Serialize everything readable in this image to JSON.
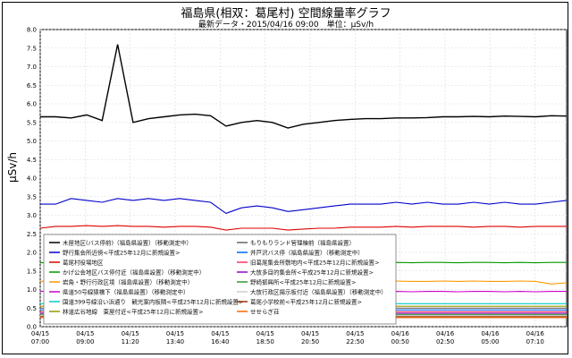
{
  "chart_data": {
    "type": "line",
    "title": "福島県(相双：葛尾村) 空間線量率グラフ",
    "subtitle": "最新データ・2015/04/16 09:00　単位：μSv/h",
    "ylabel": "μSv/h",
    "xlabel": "",
    "ylim": [
      0,
      8.0
    ],
    "yticks": [
      "0.0",
      "0.5",
      "1.0",
      "1.5",
      "2.0",
      "2.5",
      "3.0",
      "3.5",
      "4.0",
      "4.5",
      "5.0",
      "5.5",
      "6.0",
      "6.5",
      "7.0",
      "7.5",
      "8.0"
    ],
    "xticks": [
      {
        "date": "04/15",
        "time": "07:00"
      },
      {
        "date": "04/15",
        "time": "09:00"
      },
      {
        "date": "04/15",
        "time": "11:20"
      },
      {
        "date": "04/15",
        "time": "13:40"
      },
      {
        "date": "04/15",
        "time": "16:40"
      },
      {
        "date": "04/15",
        "time": "18:50"
      },
      {
        "date": "04/15",
        "time": "20:50"
      },
      {
        "date": "04/15",
        "time": "22:50"
      },
      {
        "date": "04/16",
        "time": "00:50"
      },
      {
        "date": "04/16",
        "time": "02:50"
      },
      {
        "date": "04/16",
        "time": "05:00"
      },
      {
        "date": "04/16",
        "time": "07:10"
      }
    ],
    "grid": true,
    "legend_placement": "bottom-left",
    "series": [
      {
        "name": "木屋地区(バス停前)（福島県設置）（移動測定中）",
        "color": "#000000",
        "values": [
          5.65,
          5.65,
          5.62,
          5.7,
          5.55,
          7.6,
          5.5,
          5.6,
          5.65,
          5.7,
          5.72,
          5.68,
          5.4,
          5.5,
          5.55,
          5.5,
          5.35,
          5.45,
          5.5,
          5.55,
          5.58,
          5.6,
          5.6,
          5.62,
          5.62,
          5.63,
          5.65,
          5.65,
          5.66,
          5.65,
          5.67,
          5.66,
          5.65,
          5.68,
          5.67
        ]
      },
      {
        "name": "野行集会所近傍<平成25年12月に新規設置>",
        "color": "#0000cc",
        "values": [
          3.3,
          3.3,
          3.45,
          3.4,
          3.35,
          3.45,
          3.4,
          3.45,
          3.4,
          3.45,
          3.4,
          3.35,
          3.05,
          3.2,
          3.25,
          3.2,
          3.1,
          3.15,
          3.2,
          3.25,
          3.3,
          3.3,
          3.3,
          3.35,
          3.3,
          3.35,
          3.3,
          3.3,
          3.35,
          3.3,
          3.35,
          3.3,
          3.3,
          3.35,
          3.4
        ]
      },
      {
        "name": "葛尾村役場地区",
        "color": "#dd0000",
        "values": [
          2.65,
          2.7,
          2.7,
          2.72,
          2.7,
          2.72,
          2.7,
          2.7,
          2.68,
          2.7,
          2.7,
          2.68,
          2.6,
          2.65,
          2.65,
          2.65,
          2.6,
          2.63,
          2.65,
          2.65,
          2.68,
          2.68,
          2.68,
          2.7,
          2.68,
          2.7,
          2.7,
          2.7,
          2.68,
          2.7,
          2.7,
          2.68,
          2.7,
          2.7,
          2.7
        ]
      },
      {
        "name": "かげ公会地区バス停付近（福島県設置）（移動測定中）",
        "color": "#009900",
        "values": [
          1.72,
          1.73,
          1.72,
          1.74,
          1.73,
          1.74,
          1.73,
          1.73,
          1.72,
          1.74,
          1.73,
          1.72,
          1.68,
          1.7,
          1.7,
          1.7,
          1.68,
          1.7,
          1.7,
          1.71,
          1.72,
          1.72,
          1.72,
          1.73,
          1.72,
          1.73,
          1.73,
          1.72,
          1.73,
          1.73,
          1.72,
          1.73,
          1.72,
          1.73,
          1.73
        ]
      },
      {
        "name": "岩角・野行行政区境（福島県設置）（移動測定中）",
        "color": "#ff9900",
        "values": [
          1.22,
          1.24,
          1.23,
          1.25,
          1.24,
          1.25,
          1.24,
          1.24,
          1.23,
          1.24,
          1.24,
          1.23,
          1.18,
          1.2,
          1.2,
          1.2,
          1.18,
          1.19,
          1.2,
          1.21,
          1.22,
          1.22,
          1.22,
          1.23,
          1.22,
          1.22,
          1.23,
          1.22,
          1.23,
          1.22,
          1.22,
          1.23,
          1.22,
          1.15,
          1.18
        ]
      },
      {
        "name": "県道50号線猿橋下（福島県設置）（移動測定中）",
        "color": "#cc00cc",
        "values": [
          0.95,
          0.96,
          0.95,
          0.96,
          0.96,
          0.97,
          0.96,
          0.96,
          0.95,
          0.96,
          0.96,
          0.95,
          0.92,
          0.93,
          0.93,
          0.93,
          0.92,
          0.93,
          0.93,
          0.94,
          0.94,
          0.94,
          0.94,
          0.95,
          0.94,
          0.95,
          0.95,
          0.94,
          0.95,
          0.95,
          0.94,
          0.95,
          0.94,
          0.95,
          0.95
        ]
      },
      {
        "name": "国道399号線沿い浜通り　観光案内板隣<平成25年12月に新規設置>",
        "color": "#00cccc",
        "values": [
          0.62,
          0.63,
          0.62,
          0.63,
          0.63,
          0.64,
          0.63,
          0.63,
          0.62,
          0.63,
          0.63,
          0.62,
          0.6,
          0.61,
          0.61,
          0.61,
          0.6,
          0.61,
          0.61,
          0.62,
          0.62,
          0.62,
          0.62,
          0.62,
          0.62,
          0.62,
          0.62,
          0.62,
          0.62,
          0.62,
          0.62,
          0.62,
          0.62,
          0.62,
          0.62
        ]
      },
      {
        "name": "林道広谷地線　東屋付近<平成25年12月に新規設置>",
        "color": "#999900",
        "values": [
          0.55,
          0.55,
          0.55,
          0.56,
          0.55,
          0.56,
          0.55,
          0.55,
          0.55,
          0.55,
          0.55,
          0.55,
          0.53,
          0.54,
          0.54,
          0.54,
          0.53,
          0.54,
          0.54,
          0.54,
          0.55,
          0.55,
          0.55,
          0.55,
          0.55,
          0.55,
          0.55,
          0.55,
          0.55,
          0.55,
          0.55,
          0.55,
          0.55,
          0.55,
          0.55
        ]
      },
      {
        "name": "もりもりランド管理棟前（福島県設置）",
        "color": "#666666",
        "values": [
          0.5,
          0.5,
          0.5,
          0.51,
          0.5,
          0.51,
          0.5,
          0.5,
          0.5,
          0.5,
          0.5,
          0.5,
          0.48,
          0.49,
          0.49,
          0.49,
          0.48,
          0.49,
          0.49,
          0.49,
          0.5,
          0.5,
          0.5,
          0.5,
          0.5,
          0.5,
          0.5,
          0.5,
          0.5,
          0.5,
          0.5,
          0.5,
          0.5,
          0.5,
          0.5
        ]
      },
      {
        "name": "井戸沢バス停（福島県設置）（移動測定中）",
        "color": "#0066ff",
        "values": [
          0.45,
          0.46,
          0.45,
          0.46,
          0.46,
          0.46,
          0.45,
          0.45,
          0.45,
          0.45,
          0.45,
          0.45,
          0.44,
          0.44,
          0.44,
          0.44,
          0.44,
          0.44,
          0.44,
          0.45,
          0.45,
          0.45,
          0.45,
          0.45,
          0.45,
          0.45,
          0.45,
          0.45,
          0.45,
          0.45,
          0.45,
          0.45,
          0.45,
          0.45,
          0.45
        ]
      },
      {
        "name": "旧葛尾集会所敷地内<平成25年12月に新規設置>",
        "color": "#ff3366",
        "values": [
          0.4,
          0.41,
          0.4,
          0.41,
          0.4,
          0.41,
          0.4,
          0.4,
          0.4,
          0.4,
          0.4,
          0.4,
          0.39,
          0.39,
          0.39,
          0.39,
          0.39,
          0.39,
          0.39,
          0.4,
          0.4,
          0.4,
          0.4,
          0.4,
          0.4,
          0.4,
          0.4,
          0.4,
          0.4,
          0.4,
          0.4,
          0.4,
          0.4,
          0.4,
          0.4
        ]
      },
      {
        "name": "大放多目的集会所<平成25年12月に新規設置>",
        "color": "#9900cc",
        "values": [
          0.36,
          0.37,
          0.36,
          0.37,
          0.36,
          0.37,
          0.36,
          0.36,
          0.36,
          0.36,
          0.36,
          0.36,
          0.35,
          0.35,
          0.35,
          0.35,
          0.35,
          0.35,
          0.35,
          0.36,
          0.36,
          0.36,
          0.36,
          0.36,
          0.36,
          0.36,
          0.36,
          0.36,
          0.36,
          0.36,
          0.36,
          0.36,
          0.36,
          0.36,
          0.36
        ]
      },
      {
        "name": "野崎振興所<平成25年12月に新規設置>",
        "color": "#339933",
        "values": [
          0.33,
          0.34,
          0.33,
          0.34,
          0.33,
          0.34,
          0.33,
          0.33,
          0.33,
          0.33,
          0.33,
          0.33,
          0.32,
          0.32,
          0.32,
          0.32,
          0.32,
          0.32,
          0.32,
          0.33,
          0.33,
          0.33,
          0.33,
          0.33,
          0.33,
          0.33,
          0.33,
          0.33,
          0.33,
          0.33,
          0.33,
          0.33,
          0.33,
          0.33,
          0.33
        ]
      },
      {
        "name": "大放行政区揚示板付近（福島県設置）（移動測定中）",
        "color": "#cccccc",
        "values": [
          0.3,
          0.31,
          0.3,
          0.31,
          0.3,
          0.31,
          0.3,
          0.3,
          0.3,
          0.3,
          0.3,
          0.3,
          0.29,
          0.29,
          0.29,
          0.29,
          0.29,
          0.29,
          0.29,
          0.3,
          0.3,
          0.3,
          0.3,
          0.3,
          0.3,
          0.3,
          0.3,
          0.3,
          0.3,
          0.3,
          0.3,
          0.3,
          0.3,
          0.3,
          0.3
        ]
      },
      {
        "name": "葛尾小学校前<平成25年12月に新規設置>",
        "color": "#993300",
        "values": [
          0.27,
          0.28,
          0.27,
          0.28,
          0.27,
          0.28,
          0.27,
          0.27,
          0.27,
          0.27,
          0.27,
          0.27,
          0.26,
          0.26,
          0.26,
          0.26,
          0.26,
          0.26,
          0.26,
          0.27,
          0.27,
          0.27,
          0.27,
          0.27,
          0.27,
          0.27,
          0.27,
          0.27,
          0.27,
          0.27,
          0.27,
          0.27,
          0.27,
          0.27,
          0.27
        ]
      },
      {
        "name": "せせらぎ荘",
        "color": "#ff6600",
        "values": [
          0.24,
          0.25,
          0.24,
          0.25,
          0.24,
          0.25,
          0.24,
          0.24,
          0.24,
          0.24,
          0.24,
          0.24,
          0.23,
          0.23,
          0.23,
          0.23,
          0.23,
          0.23,
          0.23,
          0.24,
          0.24,
          0.24,
          0.24,
          0.24,
          0.24,
          0.24,
          0.24,
          0.24,
          0.24,
          0.24,
          0.24,
          0.24,
          0.24,
          0.24,
          0.24
        ]
      }
    ]
  }
}
